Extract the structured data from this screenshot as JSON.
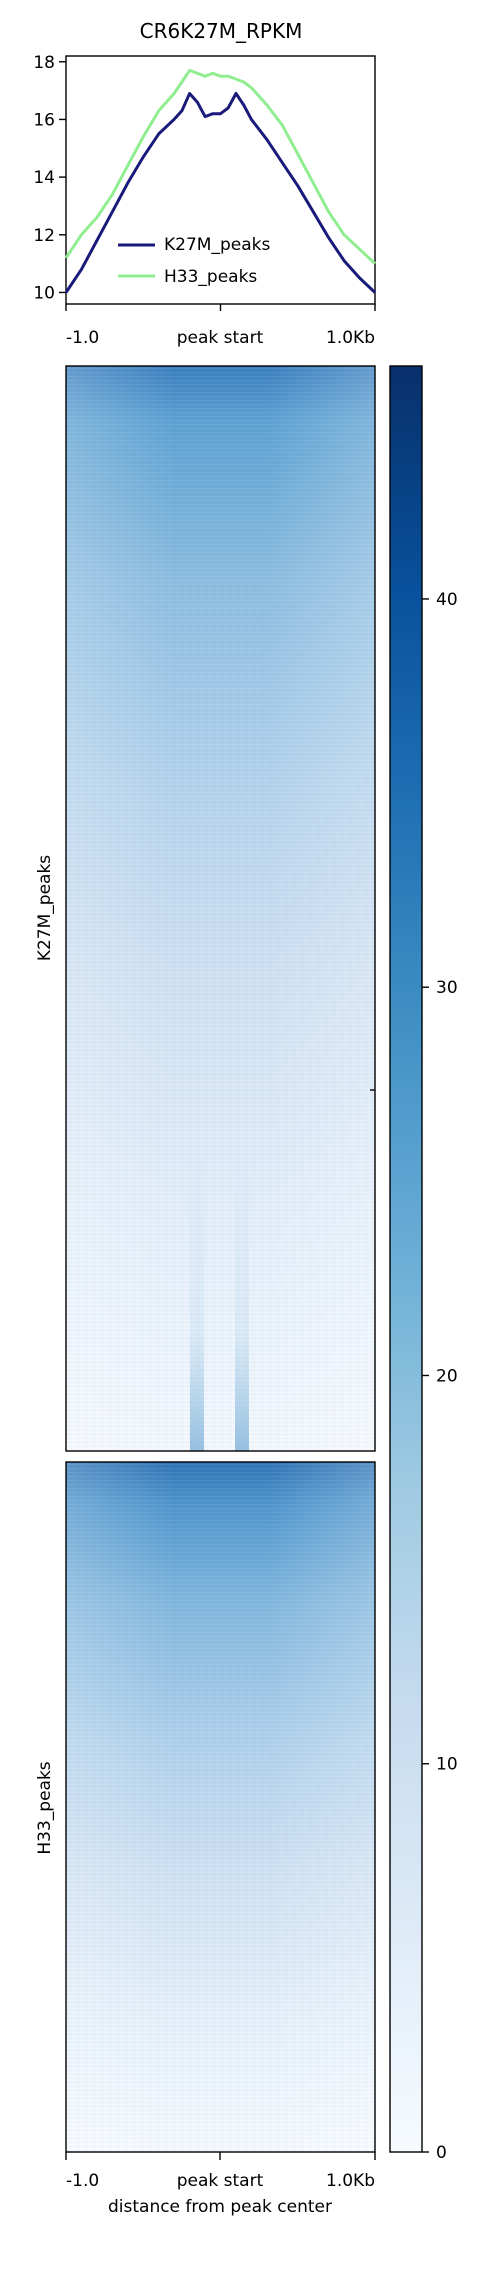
{
  "chart_data": [
    {
      "type": "line",
      "title": "CR6K27M_RPKM",
      "x_ticks": [
        "-1.0",
        "peak start",
        "1.0Kb"
      ],
      "y_ticks": [
        10,
        12,
        14,
        16,
        18
      ],
      "ylim": [
        9.6,
        18.2
      ],
      "legend": "bottom-center",
      "x": [
        -1.0,
        -0.9,
        -0.8,
        -0.7,
        -0.6,
        -0.5,
        -0.4,
        -0.3,
        -0.25,
        -0.2,
        -0.15,
        -0.1,
        -0.05,
        0.0,
        0.05,
        0.1,
        0.15,
        0.2,
        0.3,
        0.4,
        0.5,
        0.6,
        0.7,
        0.8,
        0.9,
        1.0
      ],
      "series": [
        {
          "name": "K27M_peaks",
          "color": "#1a1a7a",
          "values": [
            10.0,
            10.8,
            11.8,
            12.8,
            13.8,
            14.7,
            15.5,
            16.0,
            16.3,
            16.9,
            16.6,
            16.1,
            16.2,
            16.2,
            16.4,
            16.9,
            16.5,
            16.0,
            15.3,
            14.5,
            13.7,
            12.8,
            11.9,
            11.1,
            10.5,
            10.0
          ]
        },
        {
          "name": "H33_peaks",
          "color": "#90ee90",
          "values": [
            11.2,
            12.0,
            12.6,
            13.4,
            14.4,
            15.4,
            16.3,
            16.9,
            17.3,
            17.7,
            17.6,
            17.5,
            17.6,
            17.5,
            17.5,
            17.4,
            17.3,
            17.1,
            16.5,
            15.8,
            14.8,
            13.8,
            12.8,
            12.0,
            11.5,
            11.0
          ]
        }
      ]
    },
    {
      "type": "heatmap",
      "row_groups": [
        "K27M_peaks",
        "H33_peaks"
      ],
      "x_ticks": [
        "-1.0",
        "peak start",
        "1.0Kb"
      ],
      "xlabel": "distance from peak center",
      "colorbar": {
        "ticks": [
          0,
          10,
          20,
          30,
          40
        ],
        "range": [
          0,
          46
        ],
        "colormap": "Blues"
      }
    }
  ]
}
